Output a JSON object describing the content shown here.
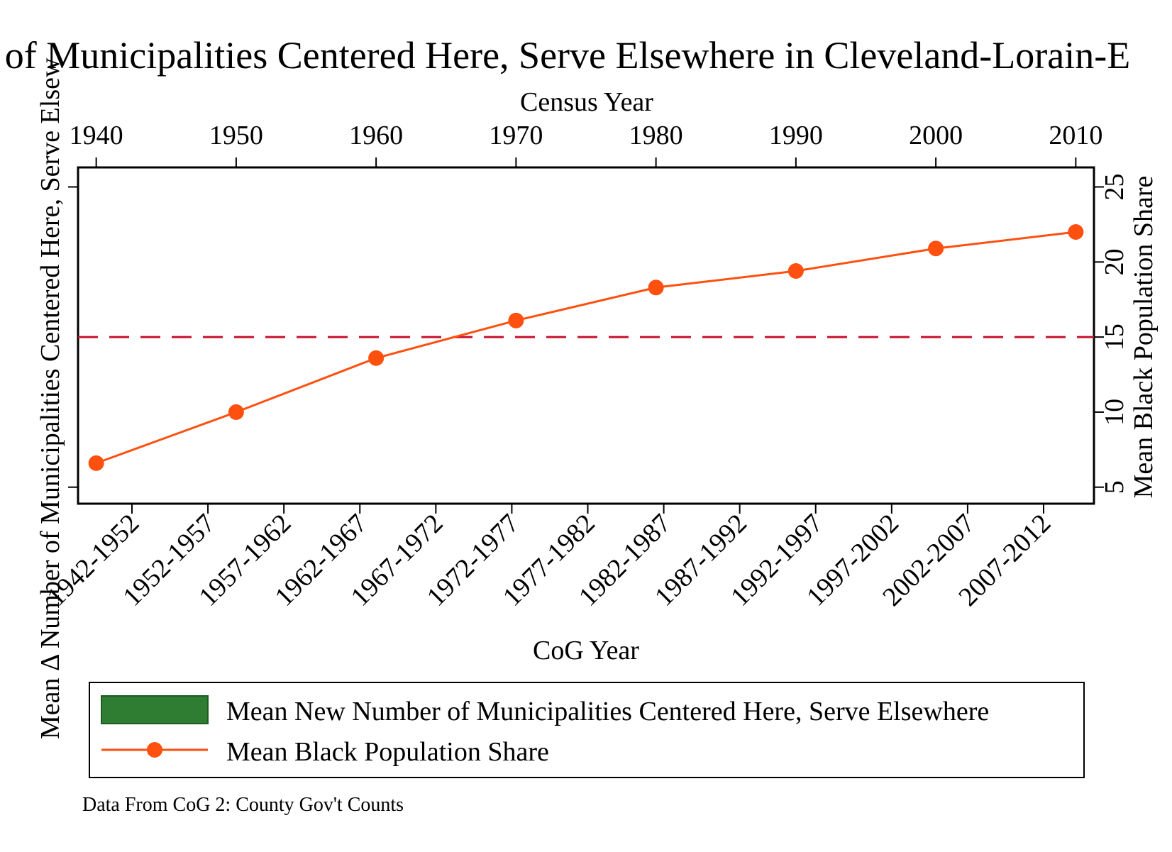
{
  "chart_data": {
    "type": "line",
    "title": "of Municipalities Centered Here, Serve Elsewhere in Cleveland-Lorain-E",
    "top_axis": {
      "label": "Census Year",
      "ticks": [
        "1940",
        "1950",
        "1960",
        "1970",
        "1980",
        "1990",
        "2000",
        "2010"
      ],
      "range": [
        1938.7,
        2011.3
      ]
    },
    "bottom_axis": {
      "label": "CoG Year",
      "ticks": [
        "1942-1952",
        "1952-1957",
        "1957-1962",
        "1962-1967",
        "1967-1972",
        "1972-1977",
        "1977-1982",
        "1982-1987",
        "1987-1992",
        "1992-1997",
        "1997-2002",
        "2002-2007",
        "2007-2012"
      ]
    },
    "left_axis": {
      "label": "Mean Δ Number of Municipalities Centered Here, Serve Elsew"
    },
    "right_axis": {
      "label": "Mean Black Population Share",
      "ticks": [
        "5",
        "10",
        "15",
        "20",
        "25"
      ],
      "range": [
        3.9,
        26.3
      ]
    },
    "series": [
      {
        "name": "Mean Black Population Share",
        "color": "#ff5010",
        "x": [
          1940,
          1950,
          1960,
          1970,
          1980,
          1990,
          2000,
          2010
        ],
        "values": [
          6.6,
          10.0,
          13.6,
          16.1,
          18.3,
          19.4,
          20.9,
          22.0
        ]
      }
    ],
    "reference_line": {
      "value": 15,
      "color": "#c8102e",
      "style": "dashed"
    },
    "legend": {
      "placement": "bottom",
      "entries": [
        {
          "label": "Mean New Number of Municipalities Centered Here, Serve Elsewhere",
          "symbol": "bar",
          "color": "#2e7d32"
        },
        {
          "label": "Mean Black Population Share",
          "symbol": "line-marker",
          "color": "#ff5010"
        }
      ]
    },
    "note": "Data From CoG 2: County Gov't Counts"
  }
}
